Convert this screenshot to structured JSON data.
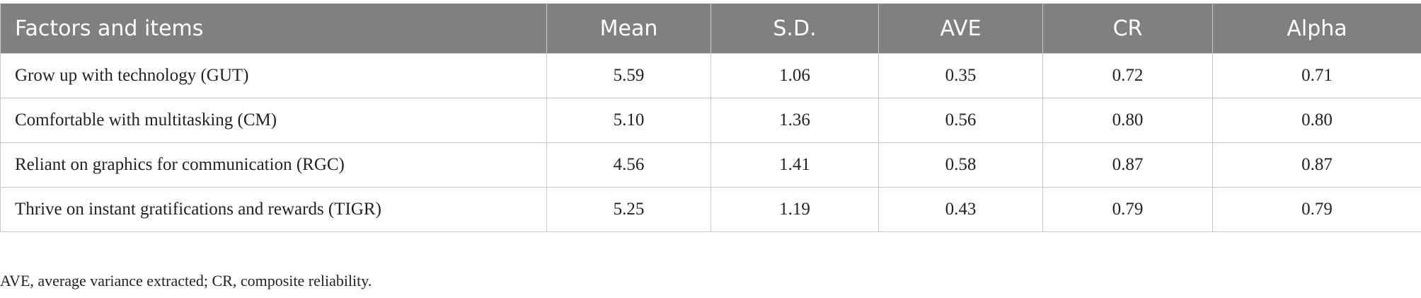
{
  "table": {
    "header": [
      "Factors and items",
      "Mean",
      "S.D.",
      "AVE",
      "CR",
      "Alpha"
    ],
    "rows": [
      [
        "Grow up with technology (GUT)",
        "5.59",
        "1.06",
        "0.35",
        "0.72",
        "0.71"
      ],
      [
        "Comfortable with multitasking (CM)",
        "5.10",
        "1.36",
        "0.56",
        "0.80",
        "0.80"
      ],
      [
        "Reliant on graphics for communication (RGC)",
        "4.56",
        "1.41",
        "0.58",
        "0.87",
        "0.87"
      ],
      [
        "Thrive on instant gratifications and rewards (TIGR)",
        "5.25",
        "1.19",
        "0.43",
        "0.79",
        "0.79"
      ]
    ]
  },
  "footnote": "AVE, average variance extracted; CR, composite reliability."
}
